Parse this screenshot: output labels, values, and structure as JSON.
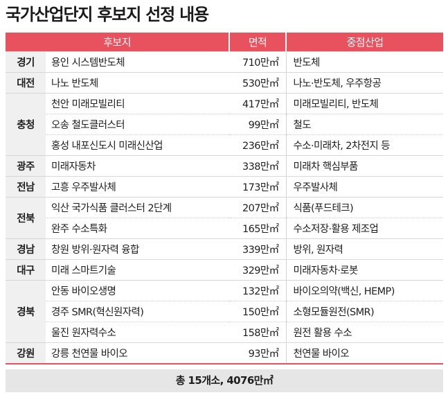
{
  "title": "국가산업단지 후보지 선정 내용",
  "headers": {
    "candidate": "후보지",
    "area": "면적",
    "industry": "중점산업"
  },
  "rows": [
    {
      "region": "경기",
      "sites": [
        {
          "name": "용인 시스템반도체",
          "area": "710만㎡",
          "industry": "반도체"
        }
      ]
    },
    {
      "region": "대전",
      "sites": [
        {
          "name": "나노 반도체",
          "area": "530만㎡",
          "industry": "나노·반도체, 우주항공"
        }
      ]
    },
    {
      "region": "충청",
      "sites": [
        {
          "name": "천안 미래모빌리티",
          "area": "417만㎡",
          "industry": "미래모빌리티, 반도체"
        },
        {
          "name": "오송 철도클러스터",
          "area": "99만㎡",
          "industry": "철도"
        },
        {
          "name": "홍성 내포신도시 미래신산업",
          "area": "236만㎡",
          "industry": "수소·미래차, 2차전지 등"
        }
      ]
    },
    {
      "region": "광주",
      "sites": [
        {
          "name": "미래자동차",
          "area": "338만㎡",
          "industry": "미래차 핵심부품"
        }
      ]
    },
    {
      "region": "전남",
      "sites": [
        {
          "name": "고흥 우주발사체",
          "area": "173만㎡",
          "industry": "우주발사체"
        }
      ]
    },
    {
      "region": "전북",
      "sites": [
        {
          "name": "익산 국가식품 클러스터 2단계",
          "area": "207만㎡",
          "industry": "식품(푸드테크)"
        },
        {
          "name": "완주 수소특화",
          "area": "165만㎡",
          "industry": "수소저장·활용 제조업"
        }
      ]
    },
    {
      "region": "경남",
      "sites": [
        {
          "name": "창원 방위·원자력 융합",
          "area": "339만㎡",
          "industry": "방위, 원자력"
        }
      ]
    },
    {
      "region": "대구",
      "sites": [
        {
          "name": "미래 스마트기술",
          "area": "329만㎡",
          "industry": "미래자동차·로봇"
        }
      ]
    },
    {
      "region": "경북",
      "sites": [
        {
          "name": "안동 바이오생명",
          "area": "132만㎡",
          "industry": "바이오의약(백신, HEMP)"
        },
        {
          "name": "경주 SMR(혁신원자력)",
          "area": "150만㎡",
          "industry": "소형모듈원전(SMR)"
        },
        {
          "name": "울진 원자력수소",
          "area": "158만㎡",
          "industry": "원전 활용 수소"
        }
      ]
    },
    {
      "region": "강원",
      "sites": [
        {
          "name": "강릉 천연물 바이오",
          "area": "93만㎡",
          "industry": "천연물 바이오"
        }
      ]
    }
  ],
  "total": "총 15개소, 4076만㎡",
  "colors": {
    "header_bg": "#e8515e",
    "region_bg": "#f0f0f0",
    "footer_bg": "#e6e6e6"
  }
}
